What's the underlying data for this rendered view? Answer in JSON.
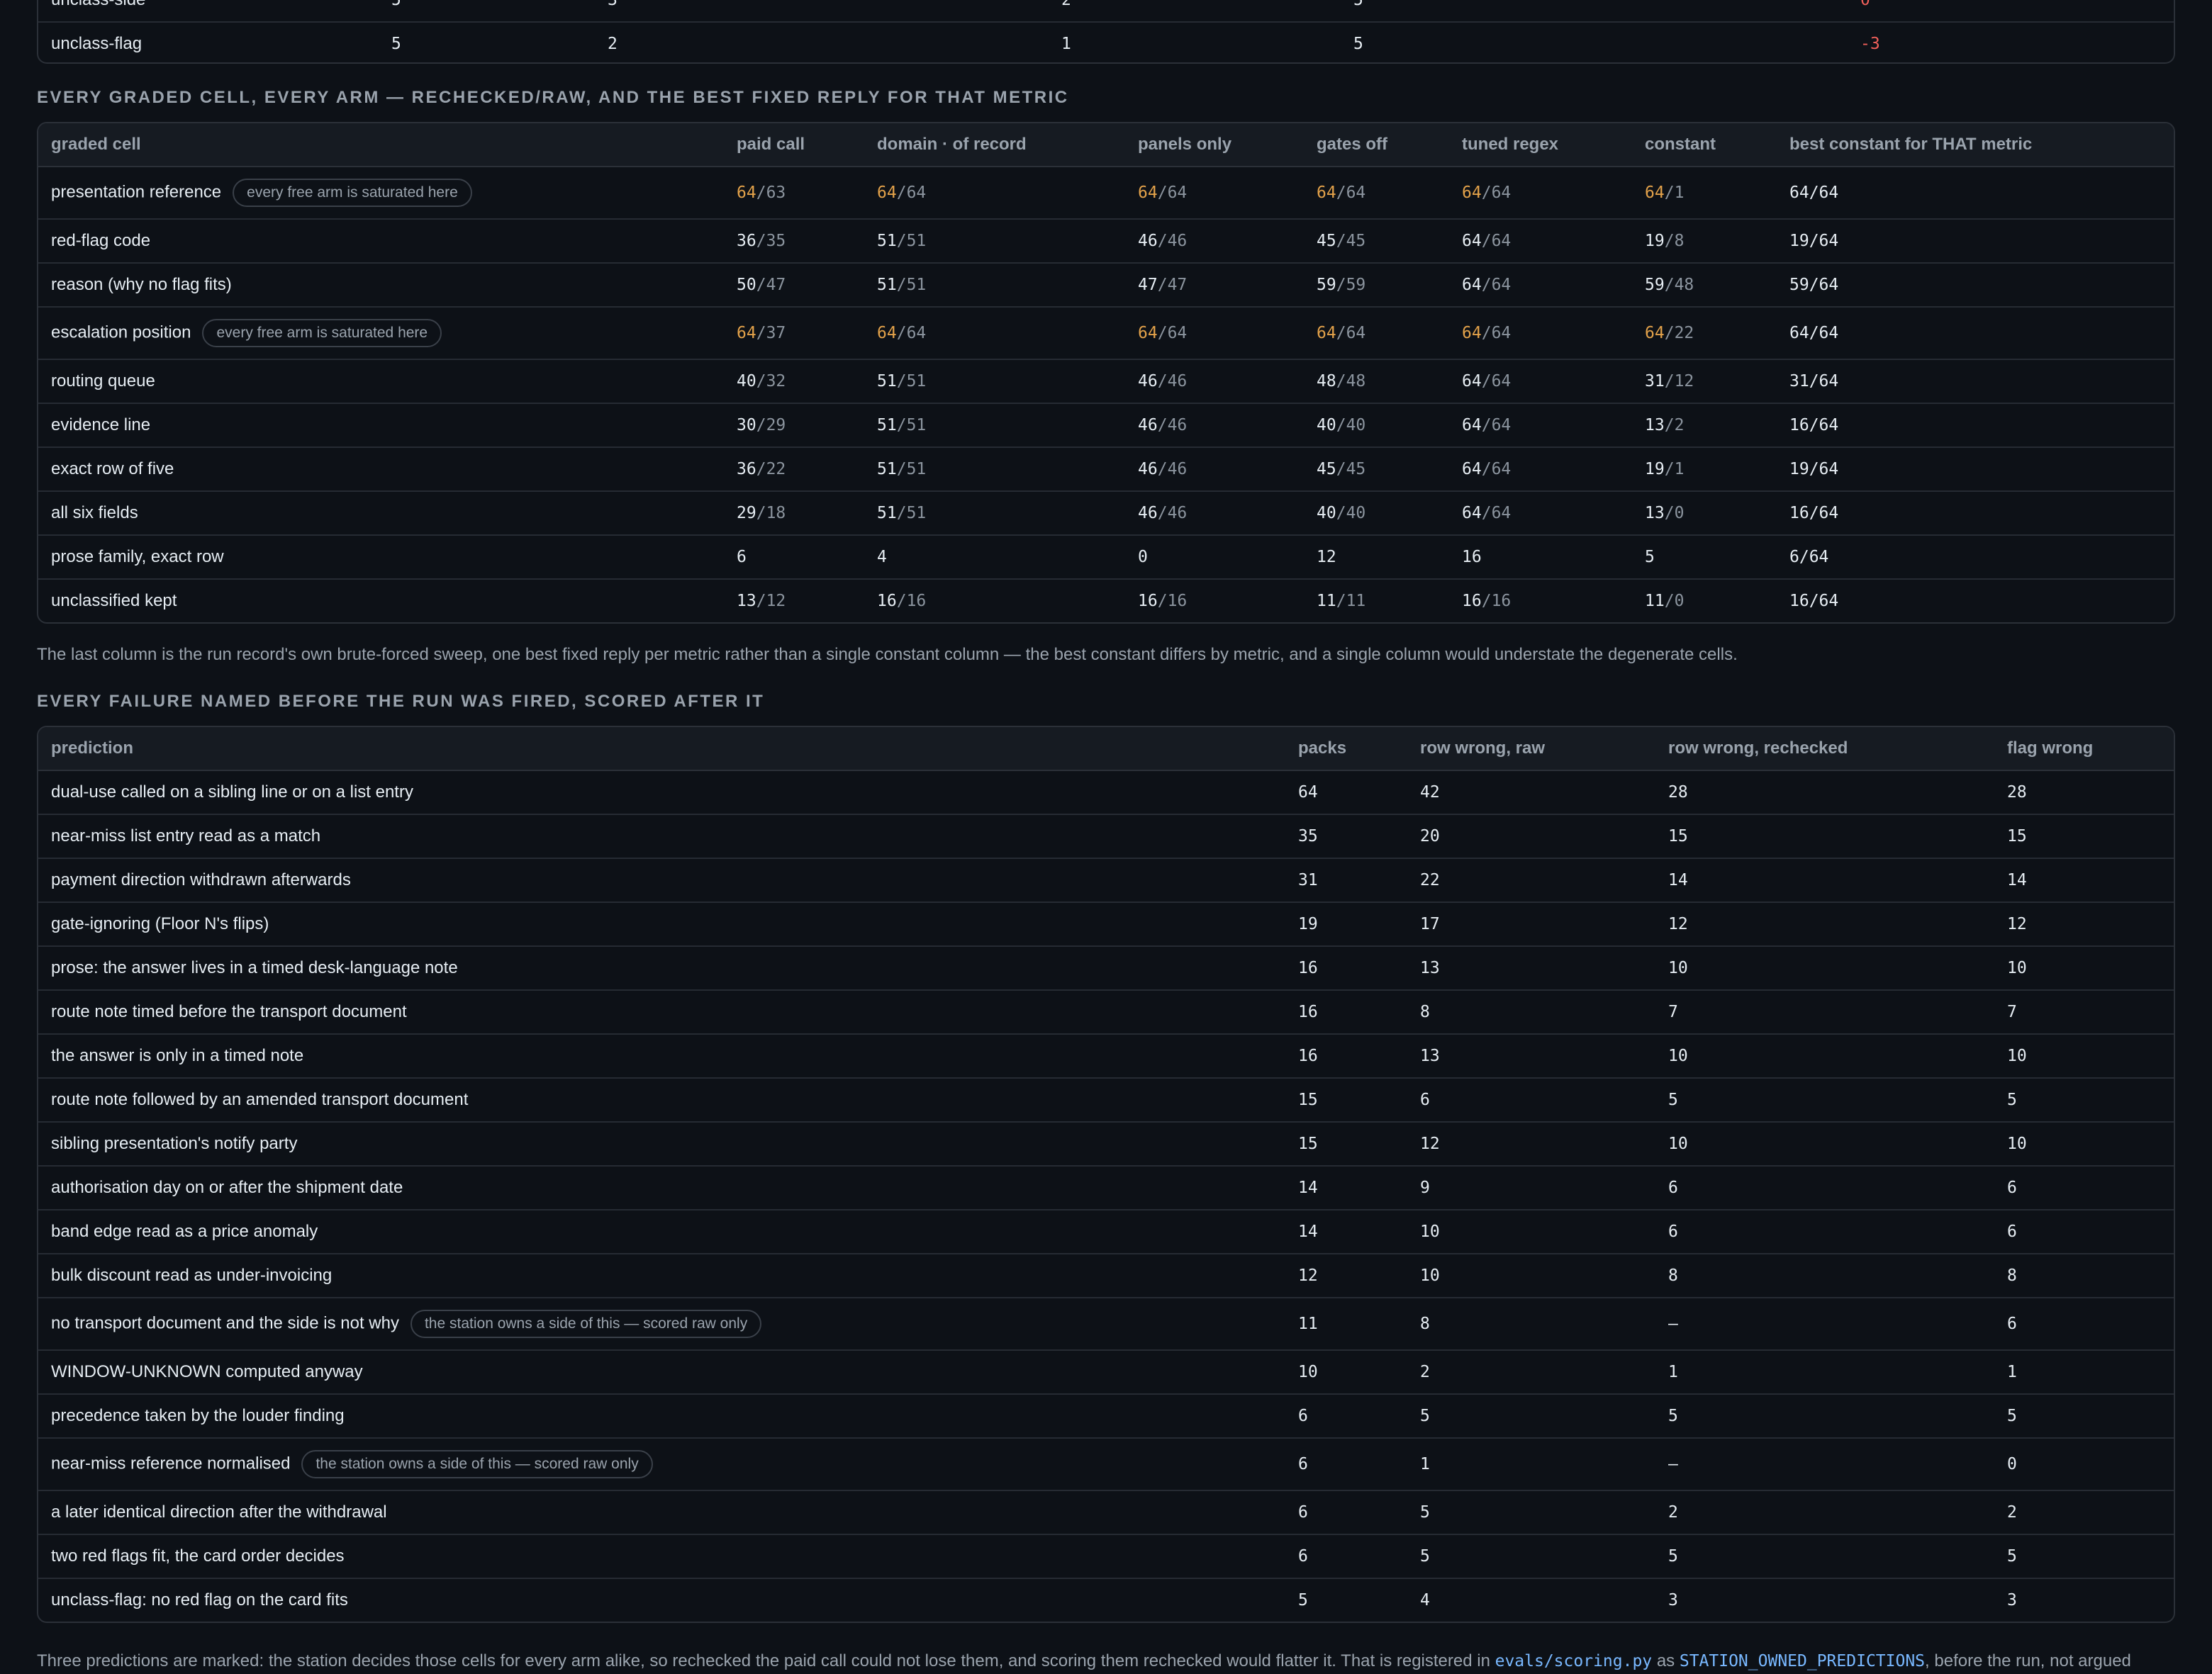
{
  "colors": {
    "background": "#0d1117",
    "saturated": "#e3a24a",
    "negative": "#f0605a",
    "code": "#79b8ff"
  },
  "top_table": {
    "rows": [
      {
        "label": "unclass-side",
        "c1": "5",
        "c2": "3",
        "c3": "2",
        "c4": "5",
        "c5": "0",
        "c5_tone": "neg"
      },
      {
        "label": "unclass-flag",
        "c1": "5",
        "c2": "2",
        "c3": "1",
        "c4": "5",
        "c5": "-3",
        "c5_tone": "neg"
      }
    ]
  },
  "graded": {
    "heading": "EVERY GRADED CELL, EVERY ARM — RECHECKED/RAW, AND THE BEST FIXED REPLY FOR THAT METRIC",
    "columns": [
      "graded cell",
      "paid call",
      "domain · of record",
      "panels only",
      "gates off",
      "tuned regex",
      "constant",
      "best constant for THAT metric"
    ],
    "rows": [
      {
        "label": "presentation reference",
        "pill": "every free arm is saturated here",
        "cells": [
          [
            "64",
            "63",
            true
          ],
          [
            "64",
            "64",
            true
          ],
          [
            "64",
            "64",
            true
          ],
          [
            "64",
            "64",
            true
          ],
          [
            "64",
            "64",
            true
          ],
          [
            "64",
            "1",
            true
          ],
          [
            "64/64",
            null,
            false
          ]
        ]
      },
      {
        "label": "red-flag code",
        "cells": [
          [
            "36",
            "35",
            false
          ],
          [
            "51",
            "51",
            false
          ],
          [
            "46",
            "46",
            false
          ],
          [
            "45",
            "45",
            false
          ],
          [
            "64",
            "64",
            false
          ],
          [
            "19",
            "8",
            false
          ],
          [
            "19/64",
            null,
            false
          ]
        ]
      },
      {
        "label": "reason (why no flag fits)",
        "cells": [
          [
            "50",
            "47",
            false
          ],
          [
            "51",
            "51",
            false
          ],
          [
            "47",
            "47",
            false
          ],
          [
            "59",
            "59",
            false
          ],
          [
            "64",
            "64",
            false
          ],
          [
            "59",
            "48",
            false
          ],
          [
            "59/64",
            null,
            false
          ]
        ]
      },
      {
        "label": "escalation position",
        "pill": "every free arm is saturated here",
        "cells": [
          [
            "64",
            "37",
            true
          ],
          [
            "64",
            "64",
            true
          ],
          [
            "64",
            "64",
            true
          ],
          [
            "64",
            "64",
            true
          ],
          [
            "64",
            "64",
            true
          ],
          [
            "64",
            "22",
            true
          ],
          [
            "64/64",
            null,
            false
          ]
        ]
      },
      {
        "label": "routing queue",
        "cells": [
          [
            "40",
            "32",
            false
          ],
          [
            "51",
            "51",
            false
          ],
          [
            "46",
            "46",
            false
          ],
          [
            "48",
            "48",
            false
          ],
          [
            "64",
            "64",
            false
          ],
          [
            "31",
            "12",
            false
          ],
          [
            "31/64",
            null,
            false
          ]
        ]
      },
      {
        "label": "evidence line",
        "cells": [
          [
            "30",
            "29",
            false
          ],
          [
            "51",
            "51",
            false
          ],
          [
            "46",
            "46",
            false
          ],
          [
            "40",
            "40",
            false
          ],
          [
            "64",
            "64",
            false
          ],
          [
            "13",
            "2",
            false
          ],
          [
            "16/64",
            null,
            false
          ]
        ]
      },
      {
        "label": "exact row of five",
        "cells": [
          [
            "36",
            "22",
            false
          ],
          [
            "51",
            "51",
            false
          ],
          [
            "46",
            "46",
            false
          ],
          [
            "45",
            "45",
            false
          ],
          [
            "64",
            "64",
            false
          ],
          [
            "19",
            "1",
            false
          ],
          [
            "19/64",
            null,
            false
          ]
        ]
      },
      {
        "label": "all six fields",
        "cells": [
          [
            "29",
            "18",
            false
          ],
          [
            "51",
            "51",
            false
          ],
          [
            "46",
            "46",
            false
          ],
          [
            "40",
            "40",
            false
          ],
          [
            "64",
            "64",
            false
          ],
          [
            "13",
            "0",
            false
          ],
          [
            "16/64",
            null,
            false
          ]
        ]
      },
      {
        "label": "prose family, exact row",
        "cells": [
          [
            "6",
            null,
            false
          ],
          [
            "4",
            null,
            false
          ],
          [
            "0",
            null,
            false
          ],
          [
            "12",
            null,
            false
          ],
          [
            "16",
            null,
            false
          ],
          [
            "5",
            null,
            false
          ],
          [
            "6/64",
            null,
            false
          ]
        ]
      },
      {
        "label": "unclassified kept",
        "cells": [
          [
            "13",
            "12",
            false
          ],
          [
            "16",
            "16",
            false
          ],
          [
            "16",
            "16",
            false
          ],
          [
            "11",
            "11",
            false
          ],
          [
            "16",
            "16",
            false
          ],
          [
            "11",
            "0",
            false
          ],
          [
            "16/64",
            null,
            false
          ]
        ]
      }
    ],
    "note": "The last column is the run record's own brute-forced sweep, one best fixed reply per metric rather than a single constant column — the best constant differs by metric, and a single column would understate the degenerate cells."
  },
  "failures": {
    "heading": "EVERY FAILURE NAMED BEFORE THE RUN WAS FIRED, SCORED AFTER IT",
    "columns": [
      "prediction",
      "packs",
      "row wrong, raw",
      "row wrong, rechecked",
      "flag wrong"
    ],
    "rows": [
      {
        "label": "dual-use called on a sibling line or on a list entry",
        "packs": "64",
        "raw": "42",
        "rechecked": "28",
        "flag": "28"
      },
      {
        "label": "near-miss list entry read as a match",
        "packs": "35",
        "raw": "20",
        "rechecked": "15",
        "flag": "15"
      },
      {
        "label": "payment direction withdrawn afterwards",
        "packs": "31",
        "raw": "22",
        "rechecked": "14",
        "flag": "14"
      },
      {
        "label": "gate-ignoring (Floor N's flips)",
        "packs": "19",
        "raw": "17",
        "rechecked": "12",
        "flag": "12"
      },
      {
        "label": "prose: the answer lives in a timed desk-language note",
        "packs": "16",
        "raw": "13",
        "rechecked": "10",
        "flag": "10"
      },
      {
        "label": "route note timed before the transport document",
        "packs": "16",
        "raw": "8",
        "rechecked": "7",
        "flag": "7"
      },
      {
        "label": "the answer is only in a timed note",
        "packs": "16",
        "raw": "13",
        "rechecked": "10",
        "flag": "10"
      },
      {
        "label": "route note followed by an amended transport document",
        "packs": "15",
        "raw": "6",
        "rechecked": "5",
        "flag": "5"
      },
      {
        "label": "sibling presentation's notify party",
        "packs": "15",
        "raw": "12",
        "rechecked": "10",
        "flag": "10"
      },
      {
        "label": "authorisation day on or after the shipment date",
        "packs": "14",
        "raw": "9",
        "rechecked": "6",
        "flag": "6"
      },
      {
        "label": "band edge read as a price anomaly",
        "packs": "14",
        "raw": "10",
        "rechecked": "6",
        "flag": "6"
      },
      {
        "label": "bulk discount read as under-invoicing",
        "packs": "12",
        "raw": "10",
        "rechecked": "8",
        "flag": "8"
      },
      {
        "label": "no transport document and the side is not why",
        "pill": "the station owns a side of this — scored raw only",
        "packs": "11",
        "raw": "8",
        "rechecked": "—",
        "flag": "6"
      },
      {
        "label": "WINDOW-UNKNOWN computed anyway",
        "packs": "10",
        "raw": "2",
        "rechecked": "1",
        "flag": "1"
      },
      {
        "label": "precedence taken by the louder finding",
        "packs": "6",
        "raw": "5",
        "rechecked": "5",
        "flag": "5"
      },
      {
        "label": "near-miss reference normalised",
        "pill": "the station owns a side of this — scored raw only",
        "packs": "6",
        "raw": "1",
        "rechecked": "—",
        "flag": "0"
      },
      {
        "label": "a later identical direction after the withdrawal",
        "packs": "6",
        "raw": "5",
        "rechecked": "2",
        "flag": "2"
      },
      {
        "label": "two red flags fit, the card order decides",
        "packs": "6",
        "raw": "5",
        "rechecked": "5",
        "flag": "5"
      },
      {
        "label": "unclass-flag: no red flag on the card fits",
        "packs": "5",
        "raw": "4",
        "rechecked": "3",
        "flag": "3"
      }
    ],
    "note": {
      "before_code1": "Three predictions are marked: the station decides those cells for every arm alike, so rechecked the paid call could not lose them, and scoring them rechecked would flatter it. That is registered in ",
      "code1": "evals/scoring.py",
      "between": " as ",
      "code2": "STATION_OWNED_PREDICTIONS",
      "after": ", before the run, not argued"
    }
  }
}
